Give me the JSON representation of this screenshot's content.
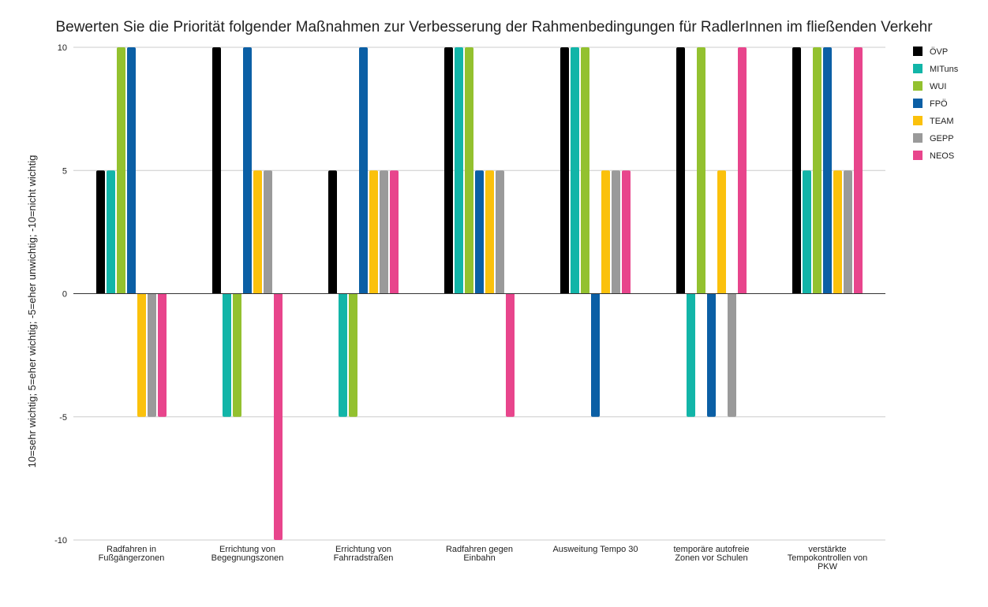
{
  "chart_data": {
    "type": "bar",
    "title": "Bewerten Sie die Priorität folgender Maßnahmen zur Verbesserung der Rahmenbedingungen für RadlerInnen im fließenden Verkehr",
    "ylabel": "10=sehr wichtig; 5=eher wichtig; -5=eher unwichtig; -10=nicht wichtig",
    "xlabel": "",
    "ylim": [
      -10,
      10
    ],
    "yticks": [
      "10",
      "5",
      "0",
      "-5",
      "-10"
    ],
    "grid": true,
    "legend_position": "right",
    "categories": [
      "Radfahren in Fußgängerzonen",
      "Errichtung von Begegnungszonen",
      "Errichtung von Fahrradstraßen",
      "Radfahren gegen Einbahn",
      "Ausweitung Tempo 30",
      "temporäre autofreie Zonen vor Schulen",
      "verstärkte Tempokontrollen von PKW"
    ],
    "category_label_lines": [
      [
        "Radfahren in",
        "Fußgängerzonen"
      ],
      [
        "Errichtung von",
        "Begegnungszonen"
      ],
      [
        "Errichtung von",
        "Fahrradstraßen"
      ],
      [
        "Radfahren gegen",
        "Einbahn"
      ],
      [
        "Ausweitung Tempo 30"
      ],
      [
        "temporäre autofreie",
        "Zonen vor Schulen"
      ],
      [
        "verstärkte",
        "Tempokontrollen von",
        "PKW"
      ]
    ],
    "series": [
      {
        "name": "ÖVP",
        "color": "#000000",
        "values": [
          5,
          10,
          5,
          10,
          10,
          10,
          10
        ]
      },
      {
        "name": "MITuns",
        "color": "#12b5a8",
        "values": [
          5,
          -5,
          -5,
          10,
          10,
          -5,
          5
        ]
      },
      {
        "name": "WUI",
        "color": "#93c12f",
        "values": [
          10,
          -5,
          -5,
          10,
          10,
          10,
          10
        ]
      },
      {
        "name": "FPÖ",
        "color": "#0b5fa5",
        "values": [
          10,
          10,
          10,
          5,
          -5,
          -5,
          10
        ]
      },
      {
        "name": "TEAM",
        "color": "#fbc10c",
        "values": [
          -5,
          5,
          5,
          5,
          5,
          5,
          5
        ]
      },
      {
        "name": "GEPP",
        "color": "#9a9a9a",
        "values": [
          -5,
          5,
          5,
          5,
          5,
          -5,
          5
        ]
      },
      {
        "name": "NEOS",
        "color": "#e8458c",
        "values": [
          -5,
          -10,
          5,
          -5,
          5,
          10,
          10
        ]
      }
    ]
  }
}
